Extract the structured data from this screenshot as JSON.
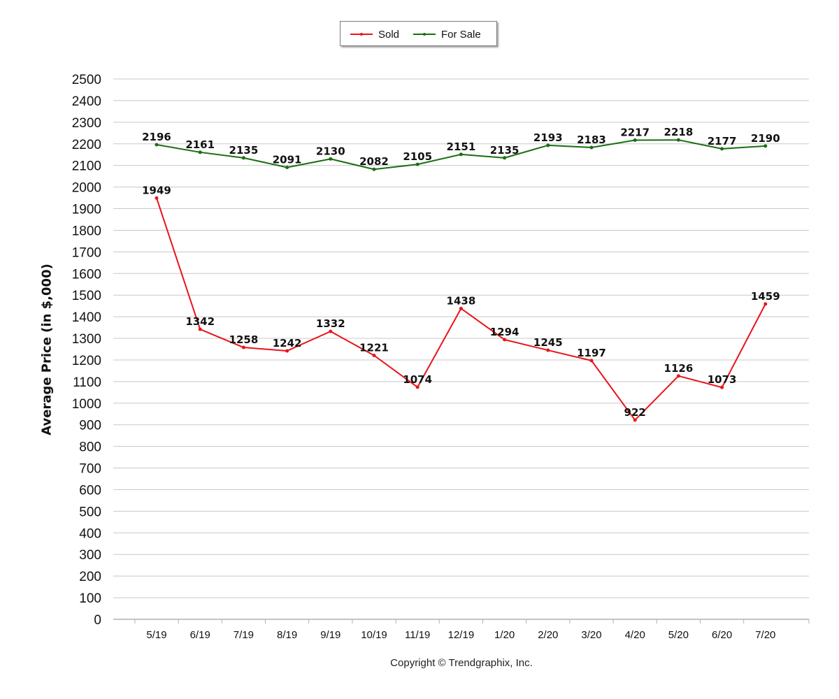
{
  "colors": {
    "sold": "#e8141b",
    "for_sale": "#1b6d12",
    "grid": "#c8c8c8",
    "axis": "#b0b0b0"
  },
  "copyright": "Copyright © Trendgraphix, Inc.",
  "chart_data": {
    "type": "line",
    "title": "",
    "xlabel": "",
    "ylabel": "Average Price (in $,000)",
    "ylim": [
      0,
      2500
    ],
    "y_ticks": [
      0,
      100,
      200,
      300,
      400,
      500,
      600,
      700,
      800,
      900,
      1000,
      1100,
      1200,
      1300,
      1400,
      1500,
      1600,
      1700,
      1800,
      1900,
      2000,
      2100,
      2200,
      2300,
      2400,
      2500
    ],
    "grid": true,
    "legend_position": "top-center",
    "categories": [
      "5/19",
      "6/19",
      "7/19",
      "8/19",
      "9/19",
      "10/19",
      "11/19",
      "12/19",
      "1/20",
      "2/20",
      "3/20",
      "4/20",
      "5/20",
      "6/20",
      "7/20"
    ],
    "series": [
      {
        "name": "Sold",
        "color": "#e8141b",
        "values": [
          1949,
          1342,
          1258,
          1242,
          1332,
          1221,
          1074,
          1438,
          1294,
          1245,
          1197,
          922,
          1126,
          1073,
          1459
        ]
      },
      {
        "name": "For Sale",
        "color": "#1b6d12",
        "values": [
          2196,
          2161,
          2135,
          2091,
          2130,
          2082,
          2105,
          2151,
          2135,
          2193,
          2183,
          2217,
          2218,
          2177,
          2190
        ]
      }
    ]
  }
}
